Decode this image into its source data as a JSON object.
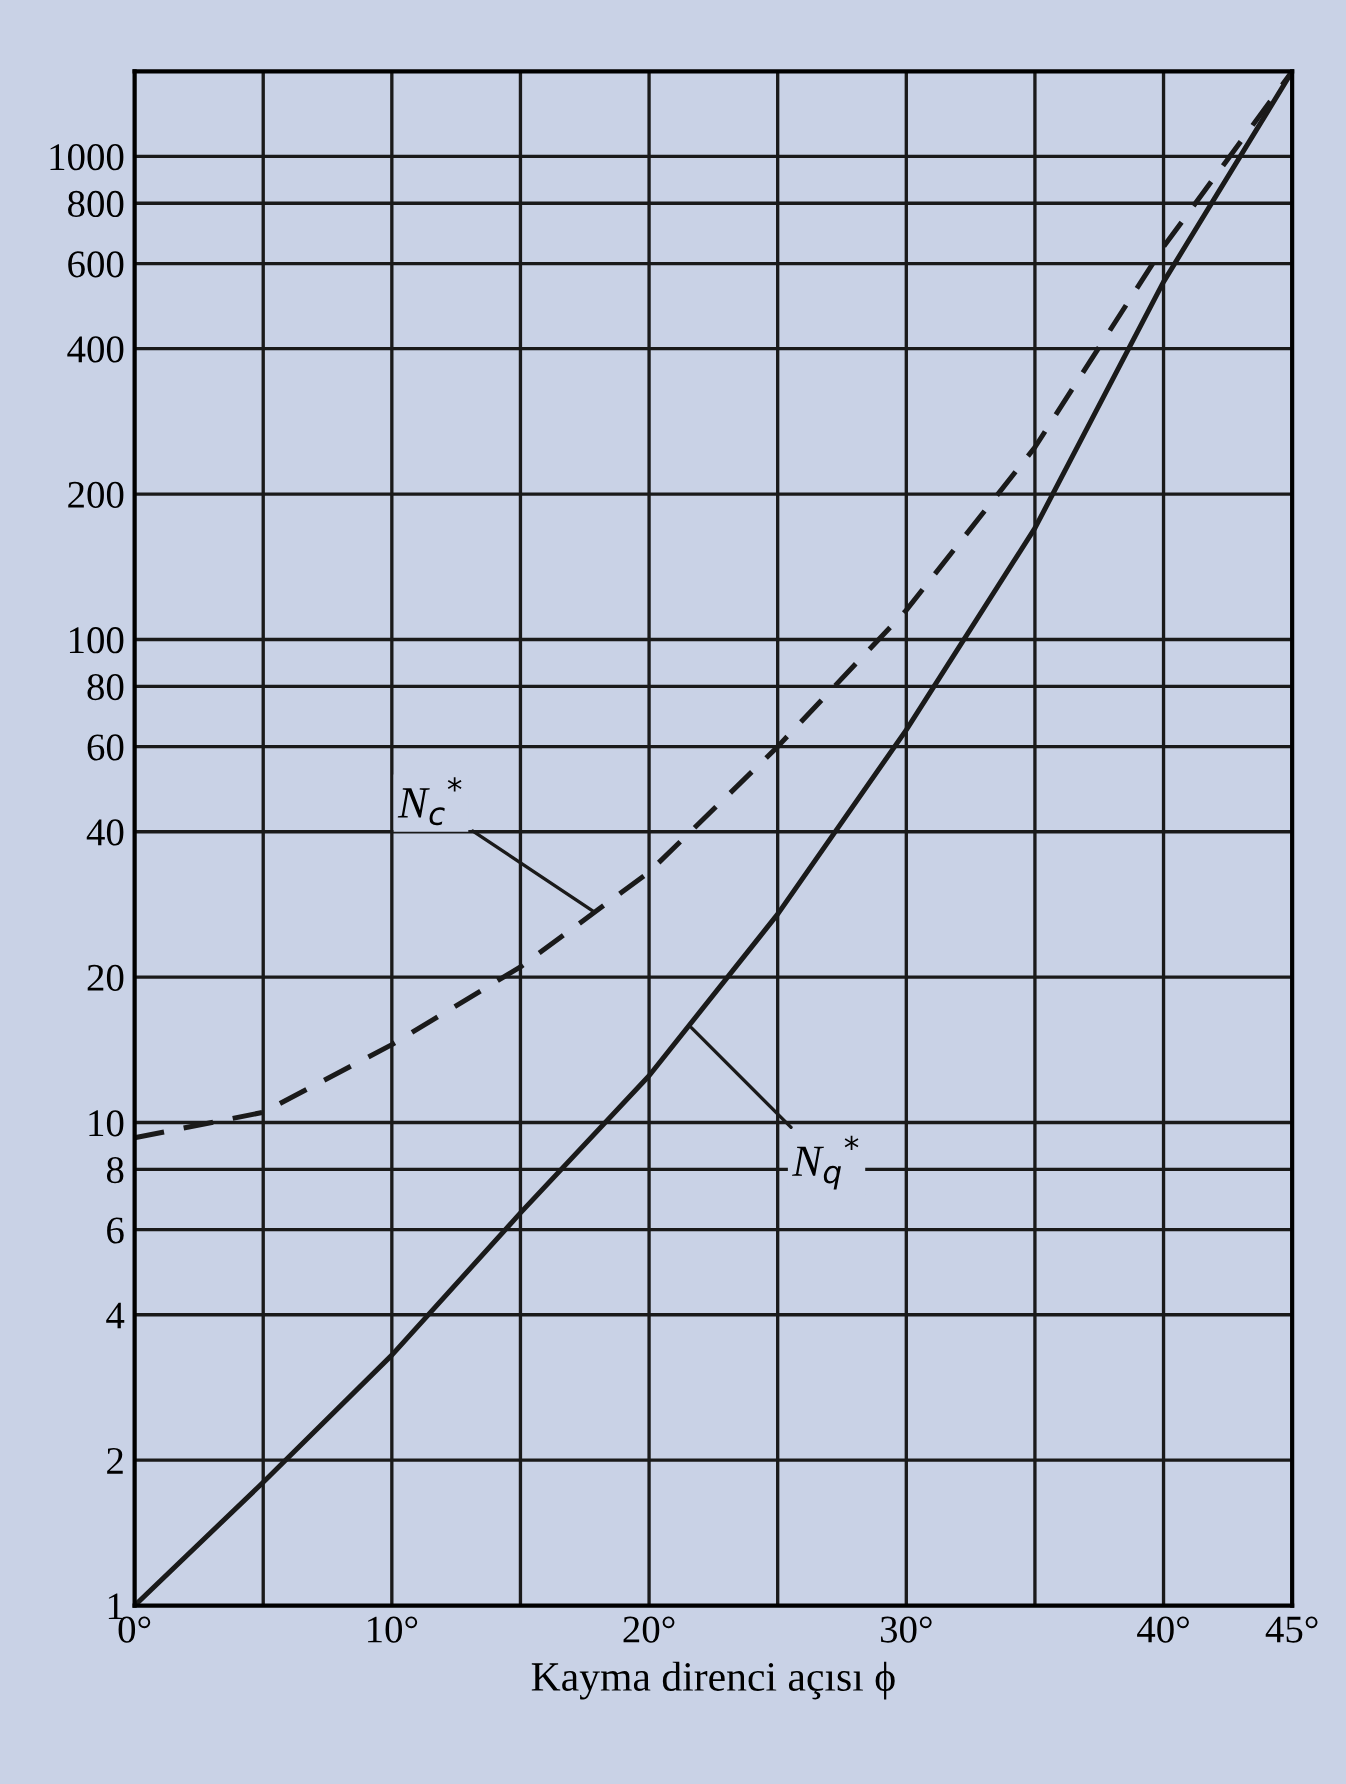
{
  "chart_data": {
    "type": "line",
    "xlabel": "Kayma direnci açısı ϕ",
    "log": "y",
    "grid": true,
    "legend": false,
    "marker": "none",
    "xlim": [
      0,
      45
    ],
    "ylim": [
      1,
      1500
    ],
    "xticks": [
      {
        "value": 0,
        "label": "0°"
      },
      {
        "value": 5,
        "label": null
      },
      {
        "value": 10,
        "label": "10°"
      },
      {
        "value": 15,
        "label": null
      },
      {
        "value": 20,
        "label": "20°"
      },
      {
        "value": 25,
        "label": null
      },
      {
        "value": 30,
        "label": "30°"
      },
      {
        "value": 35,
        "label": null
      },
      {
        "value": 40,
        "label": "40°"
      },
      {
        "value": 45,
        "label": "45°"
      }
    ],
    "yticks": [
      1,
      2,
      4,
      6,
      8,
      10,
      20,
      40,
      60,
      80,
      100,
      200,
      400,
      600,
      800,
      1000
    ],
    "x": [
      0,
      5,
      10,
      15,
      20,
      25,
      30,
      35,
      40,
      45
    ],
    "series": [
      {
        "color": "#1a1a1a",
        "line_style": "dashed",
        "values": [
          9.3,
          10.5,
          14.5,
          21,
          33,
          60,
          115,
          250,
          650,
          1500
        ]
      },
      {
        "color": "#1a1a1a",
        "line_style": "solid",
        "values": [
          1,
          1.8,
          3.3,
          6.5,
          12.5,
          27,
          65,
          170,
          550,
          1500
        ]
      }
    ],
    "annotations": [
      {
        "text": "N$_{c}$$^{*}$",
        "x": 18,
        "y": 27
      },
      {
        "text": "N$_{q}$$^{*}$",
        "x": 21.5,
        "y": 16
      }
    ]
  }
}
